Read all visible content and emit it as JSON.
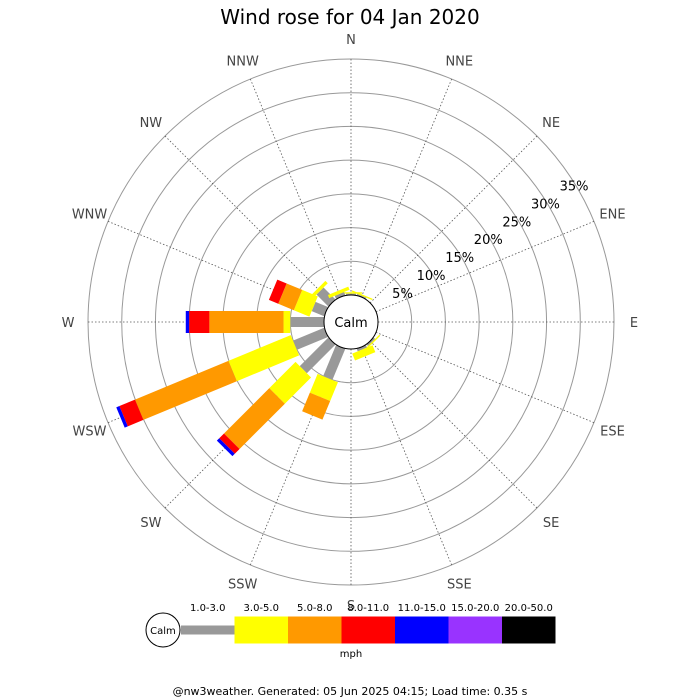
{
  "chart_data": {
    "type": "wind-rose",
    "title": "Wind rose for 04 Jan 2020",
    "directions": [
      "N",
      "NNE",
      "NE",
      "ENE",
      "E",
      "ESE",
      "SE",
      "SSE",
      "S",
      "SSW",
      "SW",
      "WSW",
      "W",
      "WNW",
      "NW",
      "NNW"
    ],
    "rings": [
      "5%",
      "10%",
      "15%",
      "20%",
      "25%",
      "30%",
      "35%"
    ],
    "ring_values": [
      5,
      10,
      15,
      20,
      25,
      30,
      35
    ],
    "calm_label": "Calm",
    "calm_radius_pct": 3.0,
    "speed_bins": [
      "1.0-3.0",
      "3.0-5.0",
      "5.0-8.0",
      "8.0-11.0",
      "11.0-15.0",
      "15.0-20.0",
      "20.0-50.0"
    ],
    "bin_colors": [
      "#999999",
      "#ffff00",
      "#ff9900",
      "#ff0000",
      "#0000ff",
      "#9933ff",
      "#000000"
    ],
    "unit": "mph",
    "cumulative": {
      "N": [
        0.2,
        0.4,
        0,
        0,
        0,
        0,
        0
      ],
      "NNE": [
        0.2,
        0.4,
        0,
        0,
        0,
        0,
        0
      ],
      "NE": [
        0,
        0,
        0,
        0,
        0,
        0,
        0
      ],
      "ENE": [
        0,
        0,
        0,
        0,
        0,
        0,
        0
      ],
      "E": [
        0,
        0,
        0,
        0,
        0,
        0,
        0
      ],
      "ESE": [
        0,
        0,
        0,
        0,
        0,
        0,
        0
      ],
      "SE": [
        0.3,
        0.5,
        0,
        0,
        0,
        0,
        0
      ],
      "SSE": [
        0.4,
        1.5,
        0,
        0,
        0,
        0,
        0
      ],
      "S": [
        0,
        0,
        0,
        0,
        0,
        0,
        0
      ],
      "SSW": [
        5.0,
        8.0,
        11.0,
        0,
        0,
        0,
        0
      ],
      "SW": [
        6.0,
        11.5,
        21.0,
        22.0,
        22.5,
        0,
        0
      ],
      "WSW": [
        5.0,
        15.0,
        30.0,
        32.5,
        33.0,
        0,
        0
      ],
      "W": [
        5.0,
        6.0,
        17.0,
        20.0,
        20.5,
        0,
        0
      ],
      "WNW": [
        2.0,
        4.5,
        7.0,
        8.5,
        0,
        0,
        0
      ],
      "NW": [
        2.5,
        3.0,
        0,
        0,
        0,
        0,
        0
      ],
      "NNW": [
        0.5,
        1.0,
        0,
        0,
        0,
        0,
        0
      ]
    }
  },
  "footer": "@nw3weather. Generated: 05 Jun 2025 04:15; Load time: 0.35 s"
}
